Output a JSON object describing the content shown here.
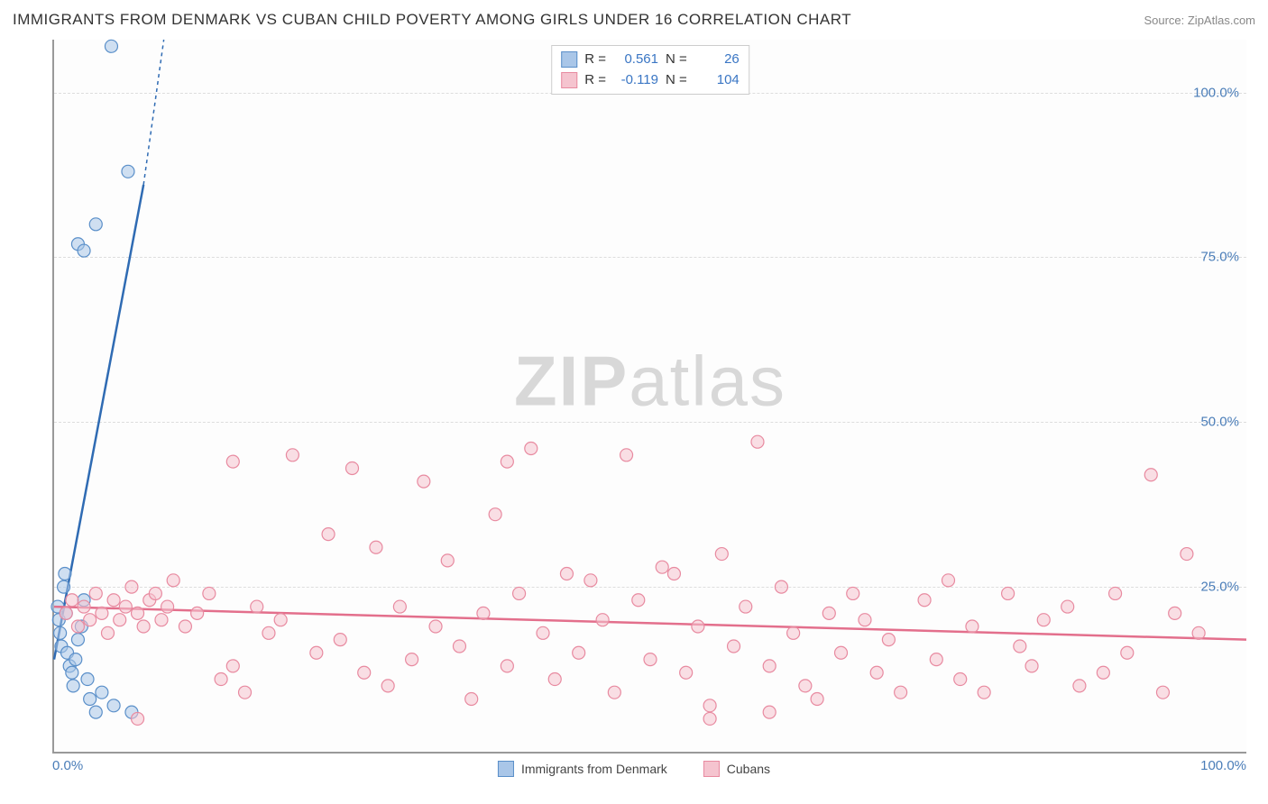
{
  "title": "IMMIGRANTS FROM DENMARK VS CUBAN CHILD POVERTY AMONG GIRLS UNDER 16 CORRELATION CHART",
  "source": "Source: ZipAtlas.com",
  "ylabel": "Child Poverty Among Girls Under 16",
  "watermark_a": "ZIP",
  "watermark_b": "atlas",
  "chart": {
    "type": "scatter",
    "background_color": "#fdfdfd",
    "axis_color": "#999999",
    "grid_color": "#dddddd",
    "tick_color": "#4a7db8",
    "xlim": [
      0,
      100
    ],
    "ylim": [
      0,
      108
    ],
    "x_ticks": [
      "0.0%",
      "100.0%"
    ],
    "y_ticks": [
      {
        "v": 25,
        "label": "25.0%"
      },
      {
        "v": 50,
        "label": "50.0%"
      },
      {
        "v": 75,
        "label": "75.0%"
      },
      {
        "v": 100,
        "label": "100.0%"
      }
    ],
    "marker_radius": 7,
    "marker_stroke_width": 1.2,
    "line_width": 2.5,
    "series": [
      {
        "name": "Immigrants from Denmark",
        "fill": "#a9c6e8",
        "stroke": "#5a8fc9",
        "line_color": "#2f6bb3",
        "stats": {
          "R": "0.561",
          "N": "26"
        },
        "trend": {
          "x1": 0,
          "y1": 14,
          "x2": 7.5,
          "y2": 86,
          "dash_x2": 9.2,
          "dash_y2": 108
        },
        "points": [
          [
            0.3,
            22
          ],
          [
            0.4,
            20
          ],
          [
            0.5,
            18
          ],
          [
            0.6,
            16
          ],
          [
            0.8,
            25
          ],
          [
            0.9,
            27
          ],
          [
            1.0,
            21
          ],
          [
            1.1,
            15
          ],
          [
            1.3,
            13
          ],
          [
            1.5,
            12
          ],
          [
            1.6,
            10
          ],
          [
            1.8,
            14
          ],
          [
            2.0,
            17
          ],
          [
            2.3,
            19
          ],
          [
            2.5,
            23
          ],
          [
            2.8,
            11
          ],
          [
            3.0,
            8
          ],
          [
            3.5,
            6
          ],
          [
            4.0,
            9
          ],
          [
            5.0,
            7
          ],
          [
            6.5,
            6
          ],
          [
            2.0,
            77
          ],
          [
            2.5,
            76
          ],
          [
            3.5,
            80
          ],
          [
            6.2,
            88
          ],
          [
            4.8,
            107
          ]
        ]
      },
      {
        "name": "Cubans",
        "fill": "#f5c4cf",
        "stroke": "#e88aa0",
        "line_color": "#e36f8c",
        "stats": {
          "R": "-0.119",
          "N": "104"
        },
        "trend": {
          "x1": 0,
          "y1": 22,
          "x2": 100,
          "y2": 17
        },
        "points": [
          [
            1,
            21
          ],
          [
            1.5,
            23
          ],
          [
            2,
            19
          ],
          [
            2.5,
            22
          ],
          [
            3,
            20
          ],
          [
            3.5,
            24
          ],
          [
            4,
            21
          ],
          [
            4.5,
            18
          ],
          [
            5,
            23
          ],
          [
            5.5,
            20
          ],
          [
            6,
            22
          ],
          [
            6.5,
            25
          ],
          [
            7,
            21
          ],
          [
            7.5,
            19
          ],
          [
            8,
            23
          ],
          [
            8.5,
            24
          ],
          [
            9,
            20
          ],
          [
            9.5,
            22
          ],
          [
            10,
            26
          ],
          [
            11,
            19
          ],
          [
            12,
            21
          ],
          [
            13,
            24
          ],
          [
            14,
            11
          ],
          [
            15,
            13
          ],
          [
            16,
            9
          ],
          [
            17,
            22
          ],
          [
            18,
            18
          ],
          [
            19,
            20
          ],
          [
            20,
            45
          ],
          [
            22,
            15
          ],
          [
            23,
            33
          ],
          [
            24,
            17
          ],
          [
            25,
            43
          ],
          [
            26,
            12
          ],
          [
            27,
            31
          ],
          [
            28,
            10
          ],
          [
            29,
            22
          ],
          [
            30,
            14
          ],
          [
            31,
            41
          ],
          [
            32,
            19
          ],
          [
            33,
            29
          ],
          [
            34,
            16
          ],
          [
            35,
            8
          ],
          [
            36,
            21
          ],
          [
            37,
            36
          ],
          [
            38,
            13
          ],
          [
            39,
            24
          ],
          [
            40,
            46
          ],
          [
            41,
            18
          ],
          [
            42,
            11
          ],
          [
            43,
            27
          ],
          [
            44,
            15
          ],
          [
            45,
            26
          ],
          [
            46,
            20
          ],
          [
            47,
            9
          ],
          [
            48,
            45
          ],
          [
            49,
            23
          ],
          [
            50,
            14
          ],
          [
            51,
            28
          ],
          [
            52,
            27
          ],
          [
            53,
            12
          ],
          [
            54,
            19
          ],
          [
            55,
            7
          ],
          [
            56,
            30
          ],
          [
            57,
            16
          ],
          [
            58,
            22
          ],
          [
            59,
            47
          ],
          [
            60,
            13
          ],
          [
            61,
            25
          ],
          [
            62,
            18
          ],
          [
            63,
            10
          ],
          [
            64,
            8
          ],
          [
            65,
            21
          ],
          [
            66,
            15
          ],
          [
            67,
            24
          ],
          [
            68,
            20
          ],
          [
            69,
            12
          ],
          [
            70,
            17
          ],
          [
            71,
            9
          ],
          [
            73,
            23
          ],
          [
            74,
            14
          ],
          [
            75,
            26
          ],
          [
            76,
            11
          ],
          [
            77,
            19
          ],
          [
            78,
            9
          ],
          [
            80,
            24
          ],
          [
            81,
            16
          ],
          [
            82,
            13
          ],
          [
            83,
            20
          ],
          [
            85,
            22
          ],
          [
            86,
            10
          ],
          [
            88,
            12
          ],
          [
            89,
            24
          ],
          [
            90,
            15
          ],
          [
            92,
            42
          ],
          [
            93,
            9
          ],
          [
            94,
            21
          ],
          [
            95,
            30
          ],
          [
            96,
            18
          ],
          [
            7,
            5
          ],
          [
            55,
            5
          ],
          [
            60,
            6
          ],
          [
            38,
            44
          ],
          [
            15,
            44
          ]
        ]
      }
    ]
  },
  "bottom_legend": [
    {
      "label": "Immigrants from Denmark",
      "fill": "#a9c6e8",
      "stroke": "#5a8fc9"
    },
    {
      "label": "Cubans",
      "fill": "#f5c4cf",
      "stroke": "#e88aa0"
    }
  ],
  "stats_labels": {
    "R": "R =",
    "N": "N ="
  }
}
